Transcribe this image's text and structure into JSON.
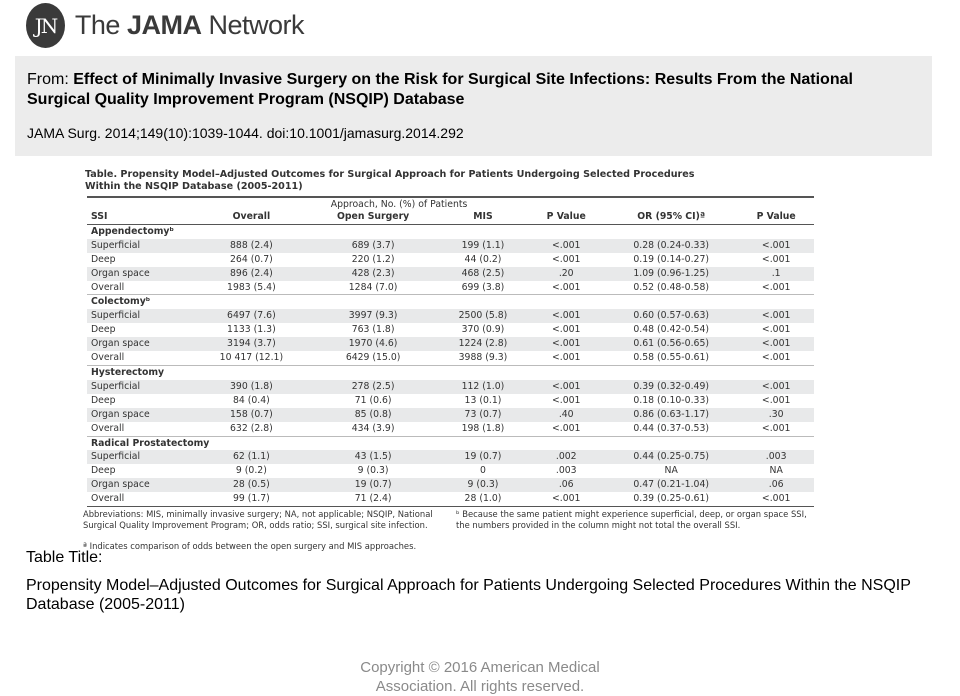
{
  "logo": {
    "badge": "JN",
    "prefix": "The ",
    "bold": "JAMA",
    "suffix": " Network"
  },
  "citation": {
    "from_label": "From: ",
    "title_line1": "Effect of Minimally Invasive Surgery on the Risk for Surgical Site Infections:  Results From the National",
    "title_line2": "Surgical Quality Improvement Program (NSQIP) Database",
    "reference": "JAMA Surg. 2014;149(10):1039-1044. doi:10.1001/jamasurg.2014.292"
  },
  "table": {
    "caption_line1": "Table. Propensity Model–Adjusted Outcomes for Surgical Approach for Patients Undergoing Selected Procedures",
    "caption_line2": "Within the NSQIP Database (2005-2011)",
    "approach_header": "Approach, No. (%) of Patients",
    "columns": [
      "SSI",
      "Overall",
      "Open Surgery",
      "MIS",
      "P Value",
      "OR (95% CI)ª",
      "P Value"
    ],
    "groups": [
      {
        "name": "Appendectomyᵇ",
        "rows": [
          [
            "Superficial",
            "888 (2.4)",
            "689 (3.7)",
            "199 (1.1)",
            "<.001",
            "0.28 (0.24-0.33)",
            "<.001"
          ],
          [
            "Deep",
            "264 (0.7)",
            "220 (1.2)",
            "44 (0.2)",
            "<.001",
            "0.19 (0.14-0.27)",
            "<.001"
          ],
          [
            "Organ space",
            "896 (2.4)",
            "428 (2.3)",
            "468 (2.5)",
            ".20",
            "1.09 (0.96-1.25)",
            ".1"
          ],
          [
            "Overall",
            "1983 (5.4)",
            "1284 (7.0)",
            "699 (3.8)",
            "<.001",
            "0.52 (0.48-0.58)",
            "<.001"
          ]
        ]
      },
      {
        "name": "Colectomyᵇ",
        "rows": [
          [
            "Superficial",
            "6497 (7.6)",
            "3997 (9.3)",
            "2500 (5.8)",
            "<.001",
            "0.60 (0.57-0.63)",
            "<.001"
          ],
          [
            "Deep",
            "1133 (1.3)",
            "763 (1.8)",
            "370 (0.9)",
            "<.001",
            "0.48 (0.42-0.54)",
            "<.001"
          ],
          [
            "Organ space",
            "3194 (3.7)",
            "1970 (4.6)",
            "1224 (2.8)",
            "<.001",
            "0.61 (0.56-0.65)",
            "<.001"
          ],
          [
            "Overall",
            "10 417 (12.1)",
            "6429 (15.0)",
            "3988 (9.3)",
            "<.001",
            "0.58 (0.55-0.61)",
            "<.001"
          ]
        ]
      },
      {
        "name": "Hysterectomy",
        "rows": [
          [
            "Superficial",
            "390 (1.8)",
            "278 (2.5)",
            "112 (1.0)",
            "<.001",
            "0.39 (0.32-0.49)",
            "<.001"
          ],
          [
            "Deep",
            "84 (0.4)",
            "71 (0.6)",
            "13 (0.1)",
            "<.001",
            "0.18 (0.10-0.33)",
            "<.001"
          ],
          [
            "Organ space",
            "158 (0.7)",
            "85 (0.8)",
            "73 (0.7)",
            ".40",
            "0.86 (0.63-1.17)",
            ".30"
          ],
          [
            "Overall",
            "632 (2.8)",
            "434 (3.9)",
            "198 (1.8)",
            "<.001",
            "0.44 (0.37-0.53)",
            "<.001"
          ]
        ]
      },
      {
        "name": "Radical Prostatectomy",
        "rows": [
          [
            "Superficial",
            "62 (1.1)",
            "43 (1.5)",
            "19 (0.7)",
            ".002",
            "0.44 (0.25-0.75)",
            ".003"
          ],
          [
            "Deep",
            "9 (0.2)",
            "9 (0.3)",
            "0",
            ".003",
            "NA",
            "NA"
          ],
          [
            "Organ space",
            "28 (0.5)",
            "19 (0.7)",
            "9 (0.3)",
            ".06",
            "0.47 (0.21-1.04)",
            ".06"
          ],
          [
            "Overall",
            "99 (1.7)",
            "71 (2.4)",
            "28 (1.0)",
            "<.001",
            "0.39 (0.25-0.61)",
            "<.001"
          ]
        ]
      }
    ],
    "abbreviations": "Abbreviations: MIS, minimally invasive surgery; NA, not applicable; NSQIP, National Surgical Quality Improvement Program; OR, odds ratio; SSI, surgical site infection.",
    "footnote_a": "ª Indicates comparison of odds between the open surgery and MIS approaches.",
    "footnote_b": "ᵇ Because the same patient might experience superficial, deep, or organ space SSI, the numbers provided in the column might not total the overall SSI."
  },
  "table_title_label": "Table Title:",
  "table_title_text": "Propensity Model–Adjusted Outcomes for Surgical Approach for Patients Undergoing Selected Procedures Within the NSQIP Database (2005-2011)",
  "copyright_line1": "Copyright © 2016 American Medical",
  "copyright_line2": "Association. All rights reserved."
}
